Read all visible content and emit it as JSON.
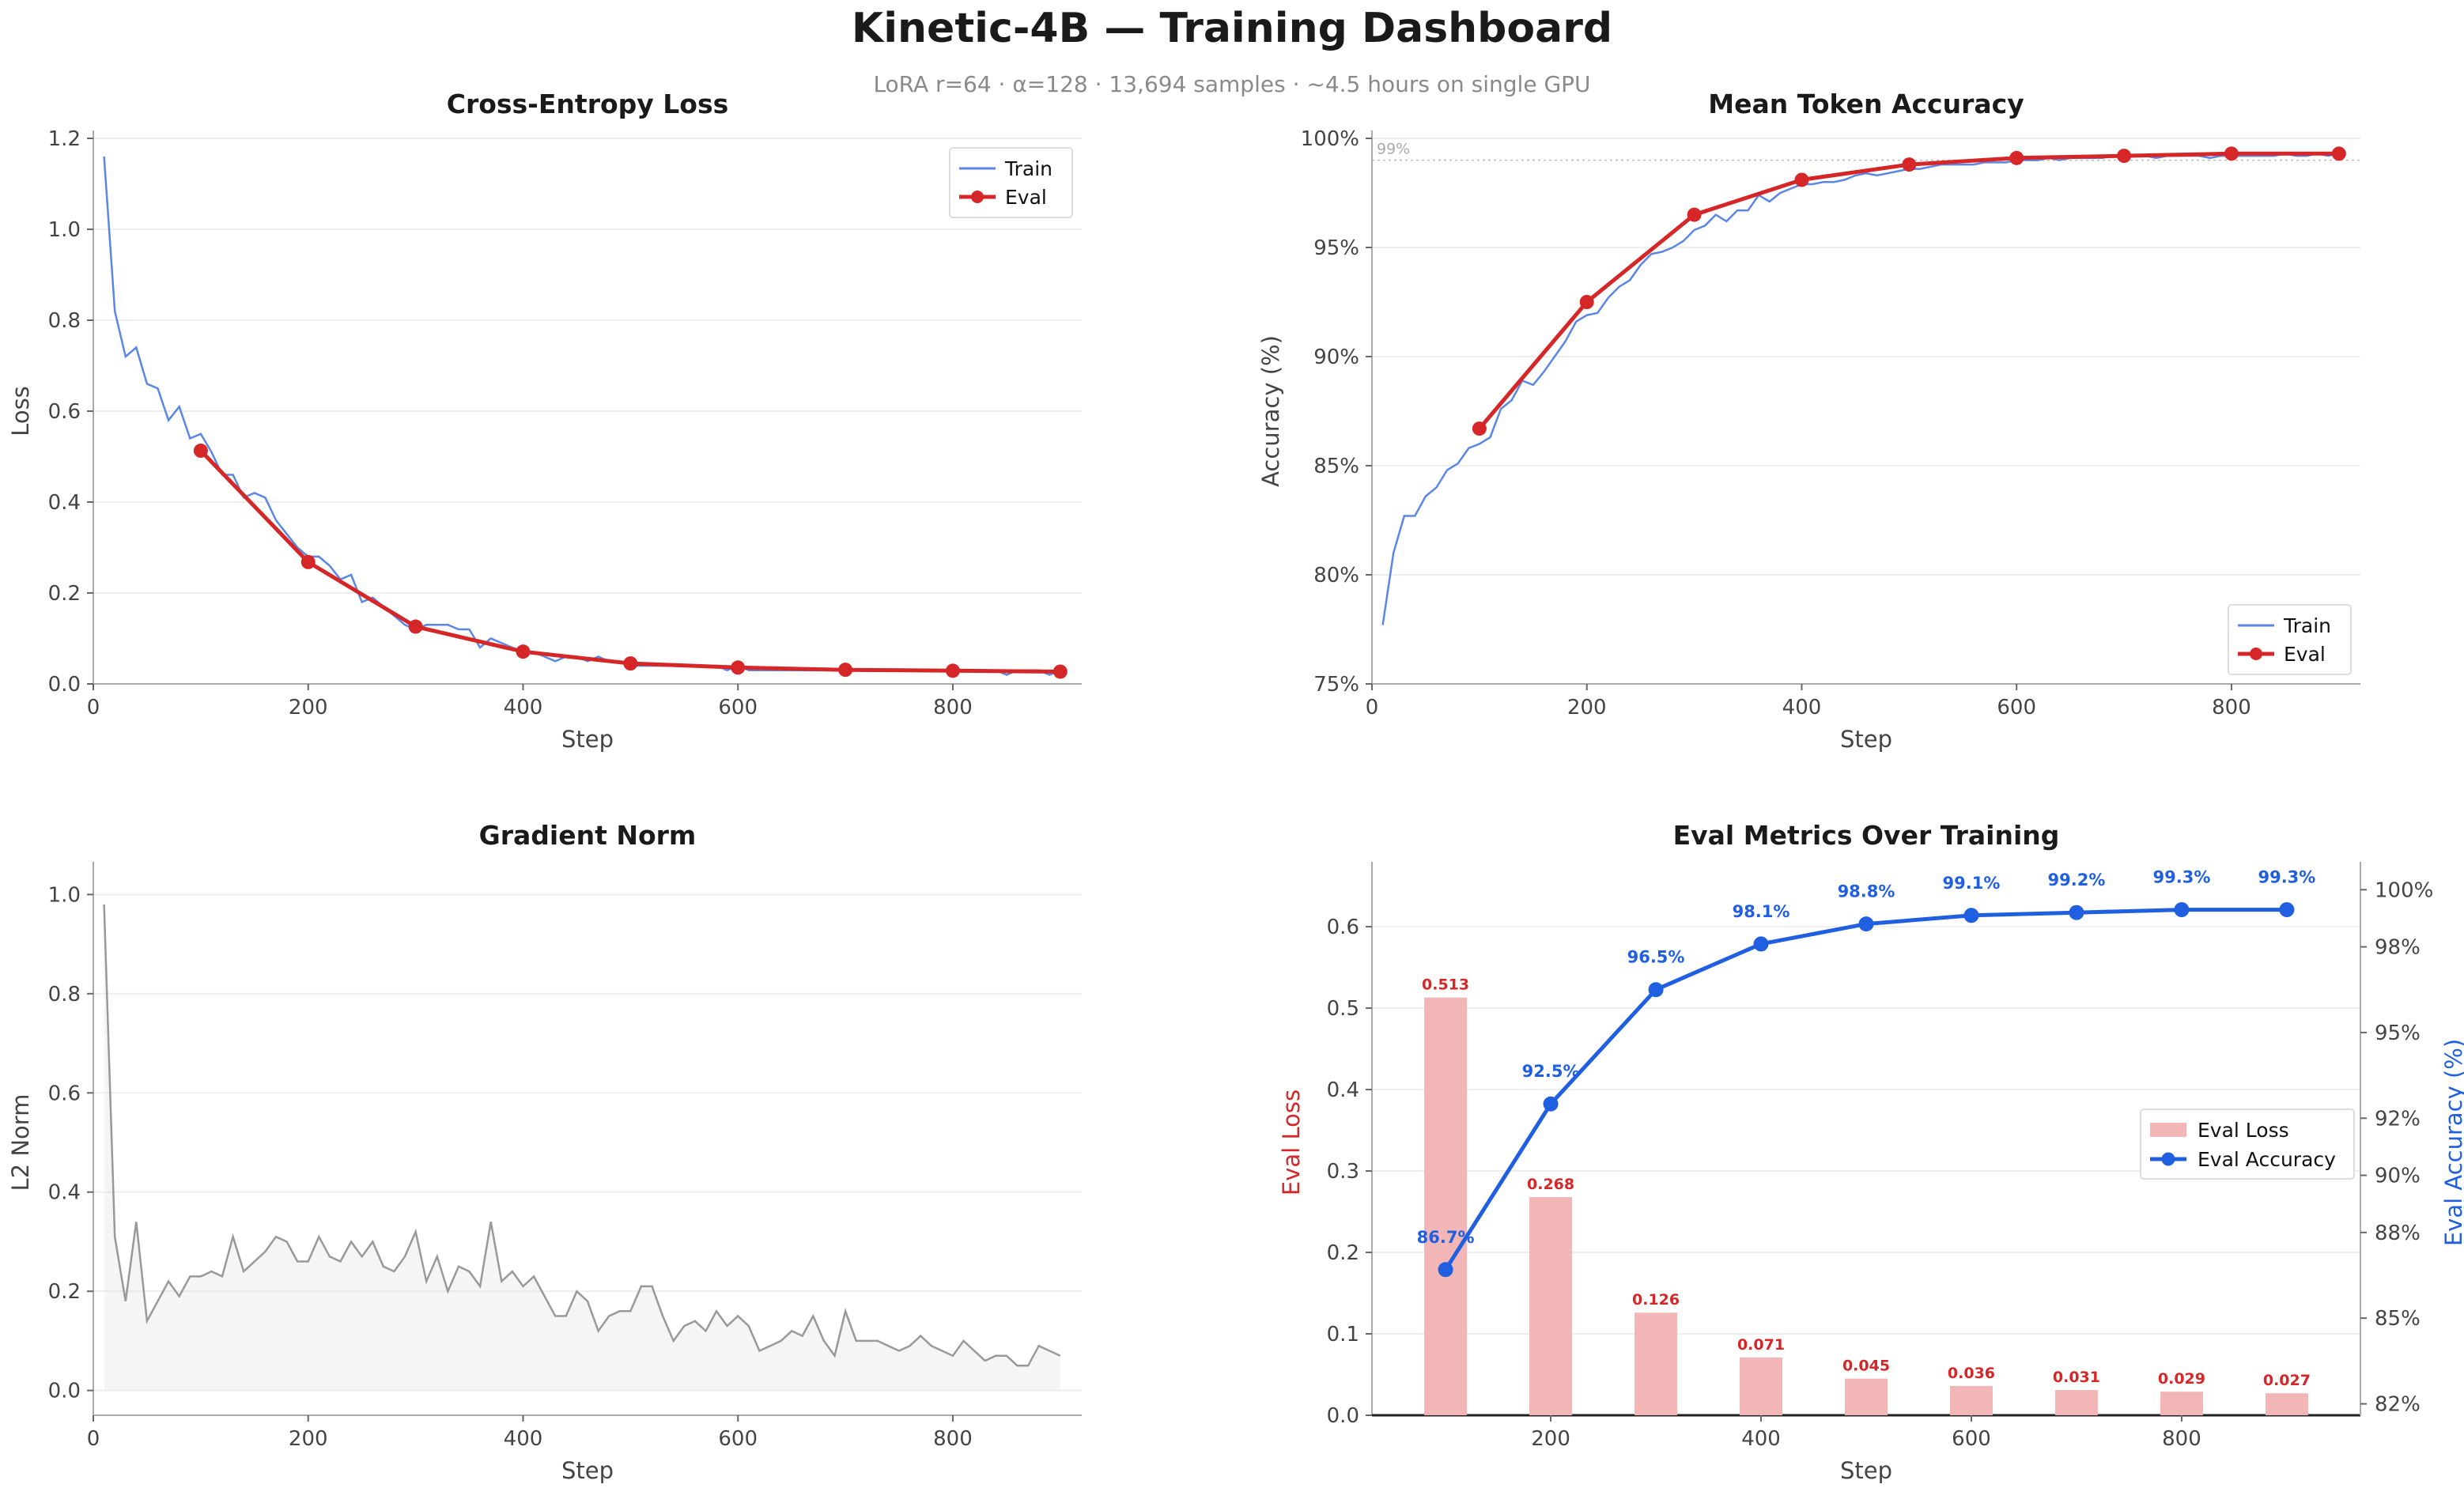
{
  "title": "Kinetic-4B — Training Dashboard",
  "subtitle": "LoRA r=64 · α=128 · 13,694 samples · ~4.5 hours on single GPU",
  "colors": {
    "train": "#5b86e5",
    "eval": "#d62728",
    "grad": "#999999",
    "eval_loss_bar": "#f2b6b6",
    "eval_acc": "#1f5fe0",
    "grid": "#eeeeee",
    "axis": "#333333",
    "tick_text": "#444444"
  },
  "chart_data": [
    {
      "type": "line",
      "title": "Cross-Entropy Loss",
      "xlabel": "Step",
      "ylabel": "Loss",
      "xlim": [
        0,
        920
      ],
      "ylim": [
        0,
        1.2
      ],
      "xticks": [
        0,
        200,
        400,
        600,
        800
      ],
      "yticks": [
        0.0,
        0.2,
        0.4,
        0.6,
        0.8,
        1.0,
        1.2
      ],
      "grid": "horizontal",
      "legend": "top-right",
      "series": [
        {
          "name": "Train",
          "x": [
            10,
            20,
            30,
            40,
            50,
            60,
            70,
            80,
            90,
            100,
            110,
            120,
            130,
            140,
            150,
            160,
            170,
            180,
            190,
            200,
            210,
            220,
            230,
            240,
            250,
            260,
            270,
            280,
            290,
            300,
            310,
            320,
            330,
            340,
            350,
            360,
            370,
            380,
            390,
            400,
            410,
            420,
            430,
            440,
            450,
            460,
            470,
            480,
            490,
            500,
            510,
            520,
            530,
            540,
            550,
            560,
            570,
            580,
            590,
            600,
            610,
            620,
            630,
            640,
            650,
            660,
            670,
            680,
            690,
            700,
            710,
            720,
            730,
            740,
            750,
            760,
            770,
            780,
            790,
            800,
            810,
            820,
            830,
            840,
            850,
            860,
            870,
            880,
            890,
            900
          ],
          "y": [
            1.16,
            0.82,
            0.72,
            0.74,
            0.66,
            0.65,
            0.58,
            0.61,
            0.54,
            0.55,
            0.51,
            0.46,
            0.46,
            0.41,
            0.42,
            0.41,
            0.36,
            0.33,
            0.3,
            0.28,
            0.28,
            0.26,
            0.23,
            0.24,
            0.18,
            0.19,
            0.17,
            0.15,
            0.13,
            0.12,
            0.13,
            0.13,
            0.13,
            0.12,
            0.12,
            0.08,
            0.1,
            0.09,
            0.08,
            0.07,
            0.07,
            0.06,
            0.05,
            0.06,
            0.06,
            0.05,
            0.06,
            0.05,
            0.05,
            0.04,
            0.04,
            0.04,
            0.04,
            0.04,
            0.04,
            0.04,
            0.04,
            0.04,
            0.03,
            0.04,
            0.03,
            0.03,
            0.03,
            0.03,
            0.03,
            0.03,
            0.03,
            0.03,
            0.03,
            0.03,
            0.03,
            0.03,
            0.03,
            0.03,
            0.03,
            0.03,
            0.03,
            0.03,
            0.03,
            0.03,
            0.03,
            0.03,
            0.03,
            0.03,
            0.02,
            0.03,
            0.03,
            0.03,
            0.02,
            0.03
          ]
        },
        {
          "name": "Eval",
          "x": [
            100,
            200,
            300,
            400,
            500,
            600,
            700,
            800,
            900
          ],
          "y": [
            0.513,
            0.268,
            0.126,
            0.071,
            0.045,
            0.036,
            0.031,
            0.029,
            0.027
          ]
        }
      ]
    },
    {
      "type": "line",
      "title": "Mean Token Accuracy",
      "xlabel": "Step",
      "ylabel": "Accuracy (%)",
      "xlim": [
        0,
        920
      ],
      "ylim": [
        75,
        100
      ],
      "xticks": [
        0,
        200,
        400,
        600,
        800
      ],
      "yticks": [
        75,
        80,
        85,
        90,
        95,
        100
      ],
      "ytick_suffix": "%",
      "grid": "horizontal",
      "legend": "bottom-right",
      "reference_line": {
        "y": 99,
        "label": "99%"
      },
      "series": [
        {
          "name": "Train",
          "x": [
            10,
            20,
            30,
            40,
            50,
            60,
            70,
            80,
            90,
            100,
            110,
            120,
            130,
            140,
            150,
            160,
            170,
            180,
            190,
            200,
            210,
            220,
            230,
            240,
            250,
            260,
            270,
            280,
            290,
            300,
            310,
            320,
            330,
            340,
            350,
            360,
            370,
            380,
            390,
            400,
            410,
            420,
            430,
            440,
            450,
            460,
            470,
            480,
            490,
            500,
            510,
            520,
            530,
            540,
            550,
            560,
            570,
            580,
            590,
            600,
            610,
            620,
            630,
            640,
            650,
            660,
            670,
            680,
            690,
            700,
            710,
            720,
            730,
            740,
            750,
            760,
            770,
            780,
            790,
            800,
            810,
            820,
            830,
            840,
            850,
            860,
            870,
            880,
            890,
            900
          ],
          "y": [
            77.7,
            81.0,
            82.7,
            82.7,
            83.6,
            84.0,
            84.8,
            85.1,
            85.8,
            86.0,
            86.3,
            87.6,
            88.0,
            88.9,
            88.7,
            89.3,
            90.0,
            90.7,
            91.6,
            91.9,
            92.0,
            92.7,
            93.2,
            93.5,
            94.2,
            94.7,
            94.8,
            95.0,
            95.3,
            95.8,
            96.0,
            96.5,
            96.2,
            96.7,
            96.7,
            97.4,
            97.1,
            97.5,
            97.7,
            97.9,
            97.9,
            98.0,
            98.0,
            98.1,
            98.3,
            98.4,
            98.3,
            98.4,
            98.5,
            98.6,
            98.6,
            98.7,
            98.8,
            98.8,
            98.8,
            98.8,
            98.9,
            98.9,
            98.9,
            99.0,
            99.0,
            99.0,
            99.1,
            99.0,
            99.1,
            99.1,
            99.1,
            99.1,
            99.2,
            99.1,
            99.2,
            99.2,
            99.1,
            99.2,
            99.2,
            99.2,
            99.2,
            99.1,
            99.2,
            99.2,
            99.2,
            99.2,
            99.2,
            99.2,
            99.3,
            99.2,
            99.2,
            99.3,
            99.2,
            99.3
          ]
        },
        {
          "name": "Eval",
          "x": [
            100,
            200,
            300,
            400,
            500,
            600,
            700,
            800,
            900
          ],
          "y": [
            86.7,
            92.5,
            96.5,
            98.1,
            98.8,
            99.1,
            99.2,
            99.3,
            99.3
          ]
        }
      ]
    },
    {
      "type": "area",
      "title": "Gradient Norm",
      "xlabel": "Step",
      "ylabel": "L2 Norm",
      "xlim": [
        0,
        920
      ],
      "ylim": [
        -0.05,
        1.05
      ],
      "xticks": [
        0,
        200,
        400,
        600,
        800
      ],
      "yticks": [
        0.0,
        0.2,
        0.4,
        0.6,
        0.8,
        1.0
      ],
      "grid": "horizontal",
      "series": [
        {
          "x": [
            10,
            20,
            30,
            40,
            50,
            60,
            70,
            80,
            90,
            100,
            110,
            120,
            130,
            140,
            150,
            160,
            170,
            180,
            190,
            200,
            210,
            220,
            230,
            240,
            250,
            260,
            270,
            280,
            290,
            300,
            310,
            320,
            330,
            340,
            350,
            360,
            370,
            380,
            390,
            400,
            410,
            420,
            430,
            440,
            450,
            460,
            470,
            480,
            490,
            500,
            510,
            520,
            530,
            540,
            550,
            560,
            570,
            580,
            590,
            600,
            610,
            620,
            630,
            640,
            650,
            660,
            670,
            680,
            690,
            700,
            710,
            720,
            730,
            740,
            750,
            760,
            770,
            780,
            790,
            800,
            810,
            820,
            830,
            840,
            850,
            860,
            870,
            880,
            890,
            900
          ],
          "y": [
            0.98,
            0.31,
            0.18,
            0.34,
            0.14,
            0.18,
            0.22,
            0.19,
            0.23,
            0.23,
            0.24,
            0.23,
            0.31,
            0.24,
            0.26,
            0.28,
            0.31,
            0.3,
            0.26,
            0.26,
            0.31,
            0.27,
            0.26,
            0.3,
            0.27,
            0.3,
            0.25,
            0.24,
            0.27,
            0.32,
            0.22,
            0.27,
            0.2,
            0.25,
            0.24,
            0.21,
            0.34,
            0.22,
            0.24,
            0.21,
            0.23,
            0.19,
            0.15,
            0.15,
            0.2,
            0.18,
            0.12,
            0.15,
            0.16,
            0.16,
            0.21,
            0.21,
            0.15,
            0.1,
            0.13,
            0.14,
            0.12,
            0.16,
            0.13,
            0.15,
            0.13,
            0.08,
            0.09,
            0.1,
            0.12,
            0.11,
            0.15,
            0.1,
            0.07,
            0.16,
            0.1,
            0.1,
            0.1,
            0.09,
            0.08,
            0.09,
            0.11,
            0.09,
            0.08,
            0.07,
            0.1,
            0.08,
            0.06,
            0.07,
            0.07,
            0.05,
            0.05,
            0.09,
            0.08,
            0.07
          ]
        }
      ]
    },
    {
      "type": "bar",
      "title": "Eval Metrics Over Training",
      "xlabel": "Step",
      "ylabel": "Eval Loss",
      "ylabel_right": "Eval Accuracy (%)",
      "xlim": [
        30,
        970
      ],
      "ylim": [
        0,
        0.67
      ],
      "ylim_right": [
        81.6,
        100.7
      ],
      "xticks": [
        200,
        400,
        600,
        800
      ],
      "yticks": [
        0.0,
        0.1,
        0.2,
        0.3,
        0.4,
        0.5,
        0.6
      ],
      "yticks_right": [
        82,
        85,
        88,
        90,
        92,
        95,
        98,
        100
      ],
      "ytick_right_suffix": "%",
      "grid": "horizontal",
      "legend": "center-right",
      "categories": [
        100,
        200,
        300,
        400,
        500,
        600,
        700,
        800,
        900
      ],
      "series": [
        {
          "name": "Eval Loss",
          "type": "bar",
          "values": [
            0.513,
            0.268,
            0.126,
            0.071,
            0.045,
            0.036,
            0.031,
            0.029,
            0.027
          ],
          "labels": [
            "0.513",
            "0.268",
            "0.126",
            "0.071",
            "0.045",
            "0.036",
            "0.031",
            "0.029",
            "0.027"
          ]
        },
        {
          "name": "Eval Accuracy",
          "type": "line",
          "values": [
            86.7,
            92.5,
            96.5,
            98.1,
            98.8,
            99.1,
            99.2,
            99.3,
            99.3
          ],
          "labels": [
            "86.7%",
            "92.5%",
            "96.5%",
            "98.1%",
            "98.8%",
            "99.1%",
            "99.2%",
            "99.3%",
            "99.3%"
          ]
        }
      ]
    }
  ]
}
